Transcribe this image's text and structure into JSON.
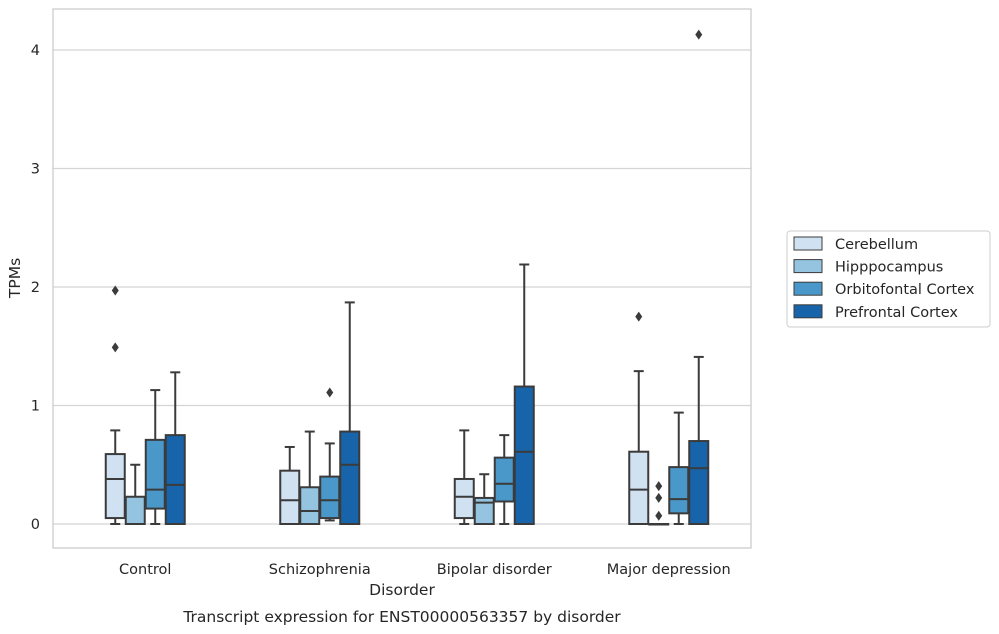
{
  "chart_data": {
    "type": "box",
    "title": "",
    "caption": "Transcript expression for ENST00000563357 by disorder",
    "xlabel": "Disorder",
    "ylabel": "TPMs",
    "categories": [
      "Control",
      "Schizophrenia",
      "Bipolar disorder",
      "Major depression"
    ],
    "yticks": [
      0,
      1,
      2,
      3,
      4
    ],
    "ylim": [
      -0.2,
      4.35
    ],
    "grid": "horizontal",
    "legend_position": "right",
    "series": [
      {
        "name": "Cerebellum",
        "color": "#d0e1f2",
        "boxes": [
          {
            "min": 0.0,
            "q1": 0.05,
            "median": 0.38,
            "q3": 0.59,
            "max": 0.79,
            "outliers": [
              1.49,
              1.97
            ]
          },
          {
            "min": 0.0,
            "q1": 0.0,
            "median": 0.2,
            "q3": 0.45,
            "max": 0.65,
            "outliers": []
          },
          {
            "min": 0.0,
            "q1": 0.05,
            "median": 0.23,
            "q3": 0.38,
            "max": 0.79,
            "outliers": []
          },
          {
            "min": 0.0,
            "q1": 0.0,
            "median": 0.29,
            "q3": 0.61,
            "max": 1.29,
            "outliers": [
              1.75
            ]
          }
        ]
      },
      {
        "name": "Hipppocampus",
        "color": "#94c4df",
        "boxes": [
          {
            "min": 0.0,
            "q1": 0.0,
            "median": 0.0,
            "q3": 0.23,
            "max": 0.5,
            "outliers": []
          },
          {
            "min": 0.0,
            "q1": 0.0,
            "median": 0.11,
            "q3": 0.31,
            "max": 0.78,
            "outliers": []
          },
          {
            "min": 0.0,
            "q1": 0.0,
            "median": 0.18,
            "q3": 0.22,
            "max": 0.42,
            "outliers": []
          },
          {
            "min": 0.0,
            "q1": 0.0,
            "median": 0.0,
            "q3": 0.0,
            "max": 0.0,
            "outliers": [
              0.07,
              0.22,
              0.32
            ]
          }
        ]
      },
      {
        "name": "Orbitofontal Cortex",
        "color": "#4a98c9",
        "boxes": [
          {
            "min": 0.0,
            "q1": 0.13,
            "median": 0.29,
            "q3": 0.71,
            "max": 1.13,
            "outliers": []
          },
          {
            "min": 0.03,
            "q1": 0.05,
            "median": 0.2,
            "q3": 0.4,
            "max": 0.68,
            "outliers": [
              1.11
            ]
          },
          {
            "min": 0.0,
            "q1": 0.19,
            "median": 0.34,
            "q3": 0.56,
            "max": 0.75,
            "outliers": []
          },
          {
            "min": 0.0,
            "q1": 0.09,
            "median": 0.21,
            "q3": 0.48,
            "max": 0.94,
            "outliers": []
          }
        ]
      },
      {
        "name": "Prefrontal Cortex",
        "color": "#1764ab",
        "boxes": [
          {
            "min": 0.0,
            "q1": 0.0,
            "median": 0.33,
            "q3": 0.75,
            "max": 1.28,
            "outliers": []
          },
          {
            "min": 0.0,
            "q1": 0.0,
            "median": 0.5,
            "q3": 0.78,
            "max": 1.87,
            "outliers": []
          },
          {
            "min": 0.0,
            "q1": 0.0,
            "median": 0.61,
            "q3": 1.16,
            "max": 2.19,
            "outliers": []
          },
          {
            "min": 0.0,
            "q1": 0.0,
            "median": 0.47,
            "q3": 0.7,
            "max": 1.41,
            "outliers": [
              4.13
            ]
          }
        ]
      }
    ]
  }
}
